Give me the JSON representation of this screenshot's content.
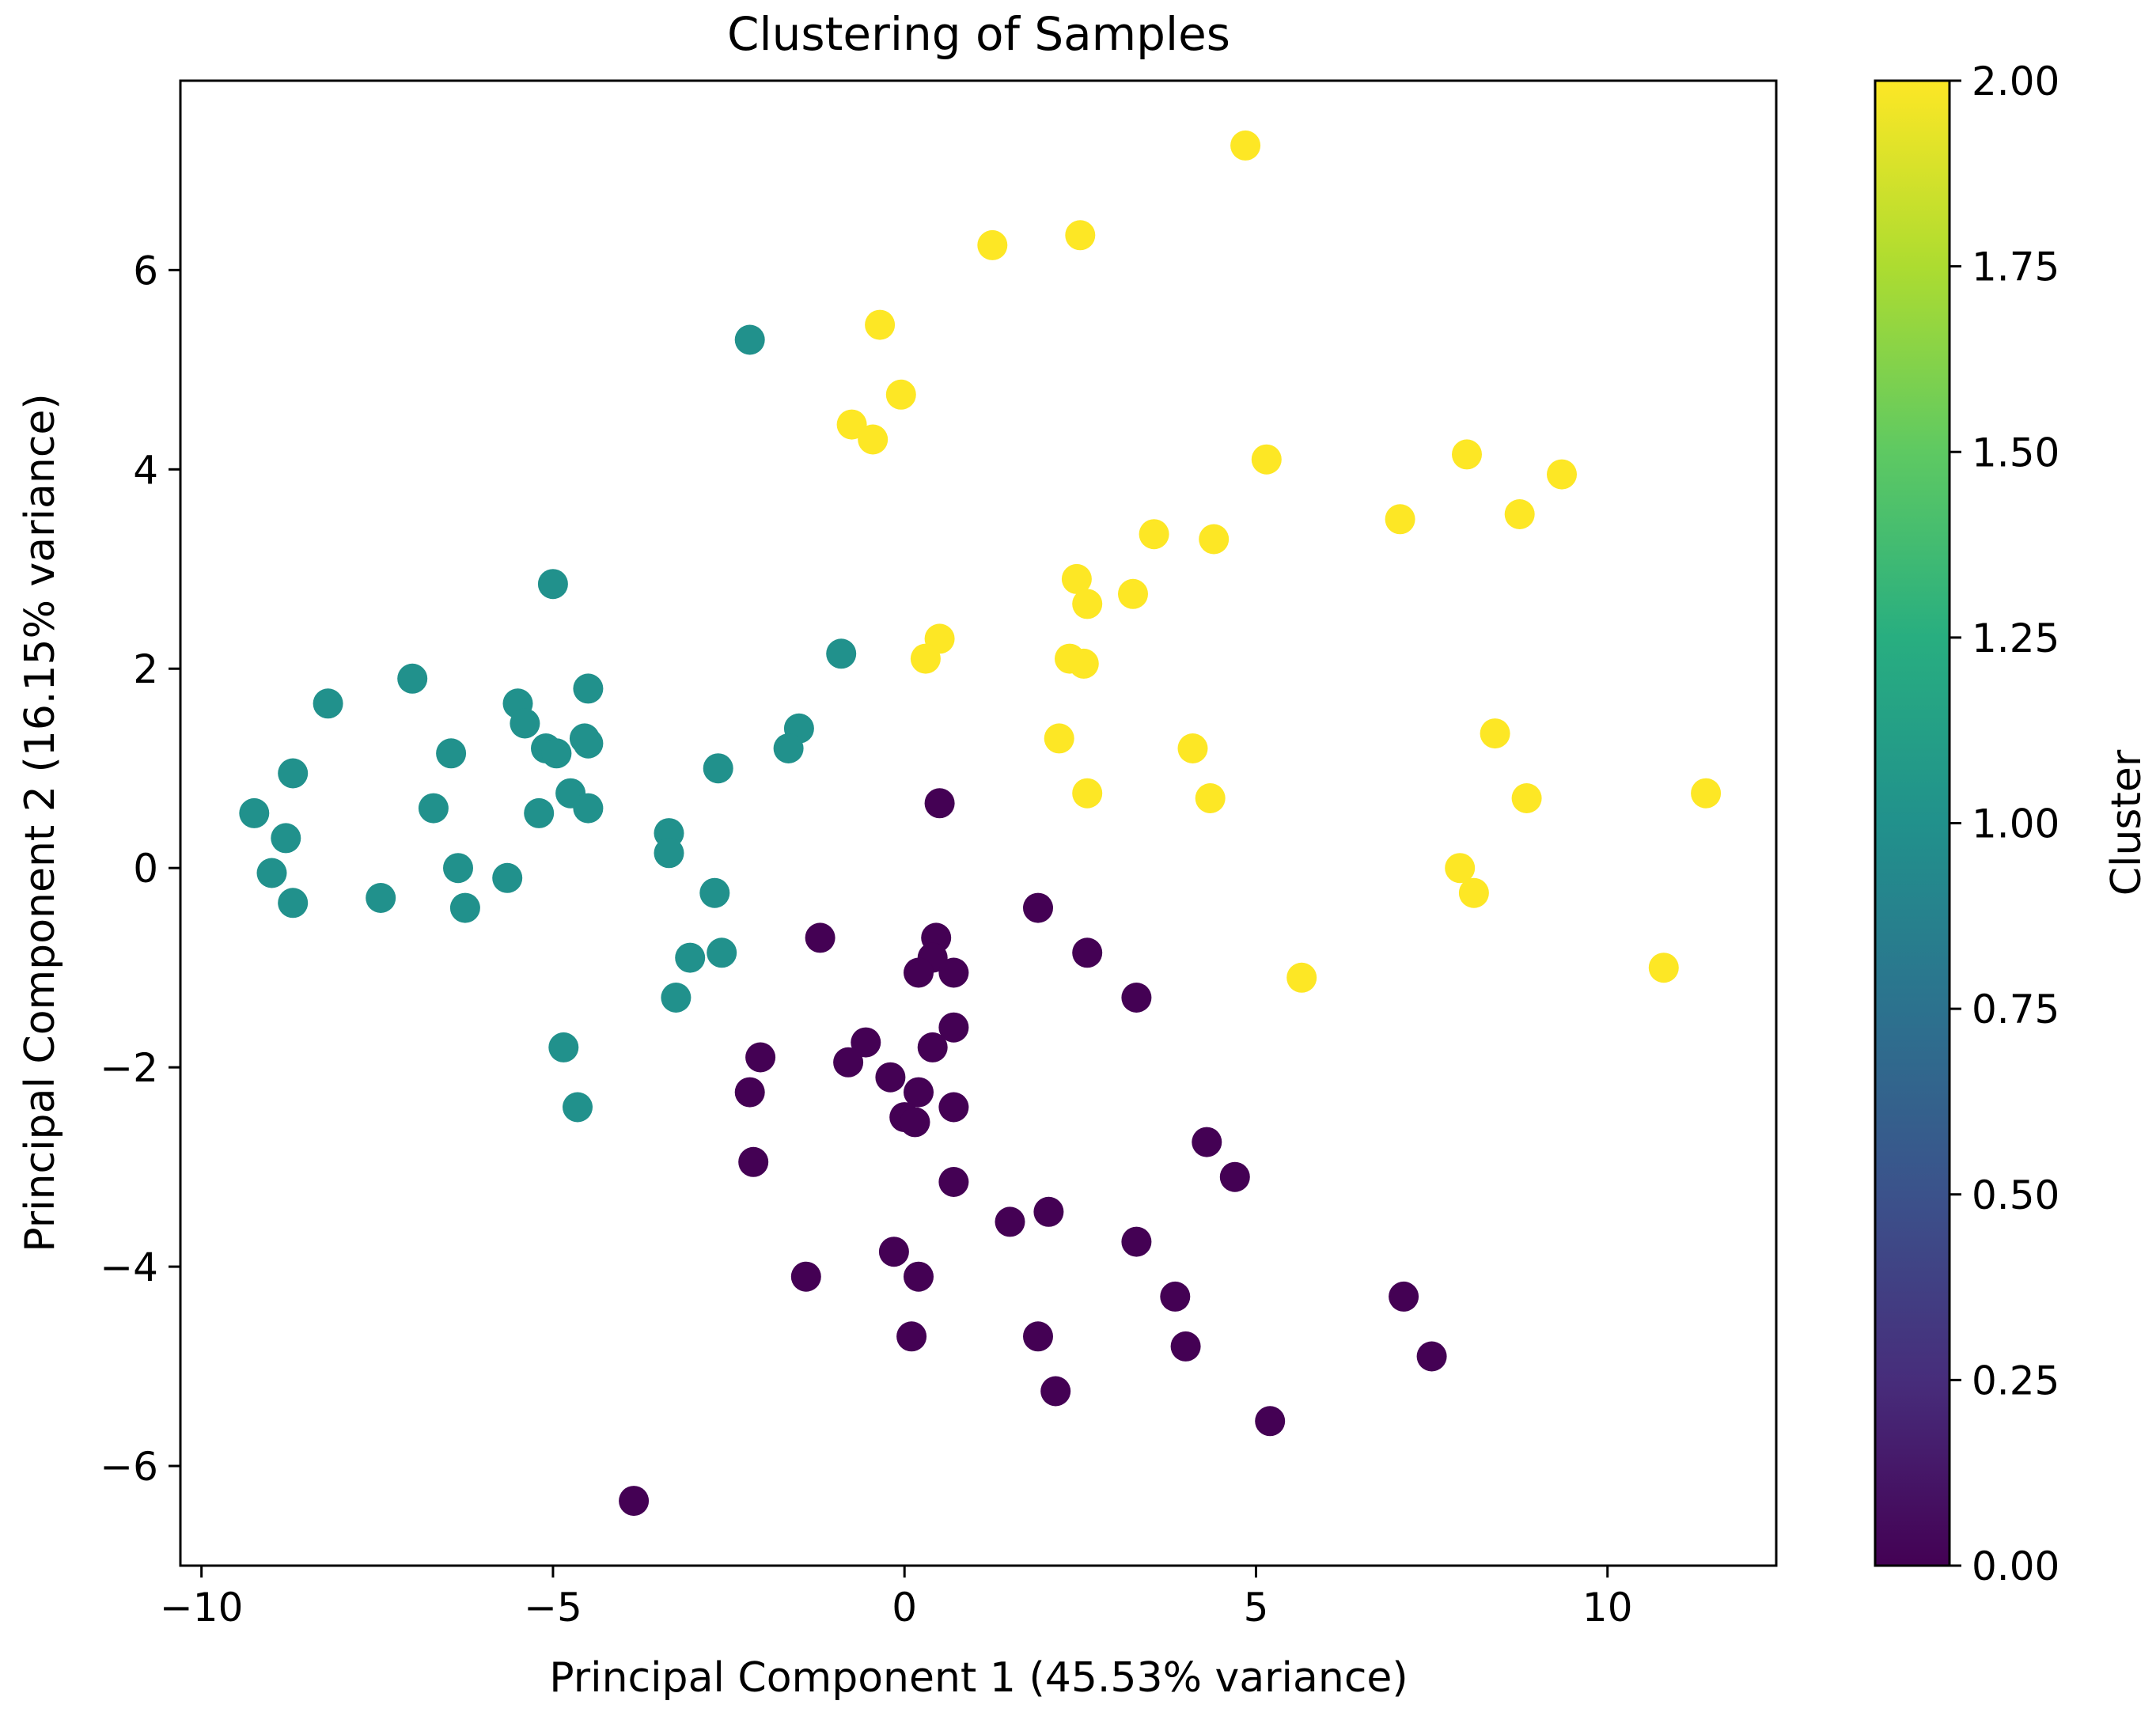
{
  "chart_data": {
    "type": "scatter",
    "title": "Clustering of Samples",
    "xlabel": "Principal Component 1 (45.53% variance)",
    "ylabel": "Principal Component 2 (16.15% variance)",
    "xlim": [
      -10.3,
      12.4
    ],
    "ylim": [
      -7.0,
      7.9
    ],
    "xticks": [
      -10,
      -5,
      0,
      5,
      10
    ],
    "xtick_labels": [
      "−10",
      "−5",
      "0",
      "5",
      "10"
    ],
    "yticks": [
      -6,
      -4,
      -2,
      0,
      2,
      4,
      6
    ],
    "ytick_labels": [
      "−6",
      "−4",
      "−2",
      "0",
      "2",
      "4",
      "6"
    ],
    "grid": false,
    "colorbar": {
      "label": "Cluster",
      "colormap": "viridis",
      "range": [
        0,
        2
      ],
      "ticks": [
        0,
        0.25,
        0.5,
        0.75,
        1.0,
        1.25,
        1.5,
        1.75,
        2.0
      ],
      "tick_labels": [
        "0.00",
        "0.25",
        "0.50",
        "0.75",
        "1.00",
        "1.25",
        "1.50",
        "1.75",
        "2.00"
      ]
    },
    "cluster_colors": [
      "#440154",
      "#21918c",
      "#fde725"
    ],
    "series": [
      {
        "cluster": 0,
        "points": [
          [
            0.5,
            0.65
          ],
          [
            1.9,
            -0.4
          ],
          [
            -1.2,
            -0.7
          ],
          [
            0.45,
            -0.7
          ],
          [
            0.4,
            -0.9
          ],
          [
            0.7,
            -1.05
          ],
          [
            0.2,
            -1.05
          ],
          [
            2.6,
            -0.85
          ],
          [
            3.3,
            -1.3
          ],
          [
            0.7,
            -1.6
          ],
          [
            0.4,
            -1.8
          ],
          [
            -0.55,
            -1.75
          ],
          [
            -0.8,
            -1.95
          ],
          [
            -2.05,
            -1.9
          ],
          [
            -0.2,
            -2.1
          ],
          [
            -2.2,
            -2.25
          ],
          [
            0.2,
            -2.25
          ],
          [
            0.7,
            -2.4
          ],
          [
            0.0,
            -2.5
          ],
          [
            0.15,
            -2.55
          ],
          [
            -2.15,
            -2.95
          ],
          [
            4.3,
            -2.75
          ],
          [
            4.7,
            -3.1
          ],
          [
            0.7,
            -3.15
          ],
          [
            1.5,
            -3.55
          ],
          [
            2.05,
            -3.45
          ],
          [
            3.3,
            -3.75
          ],
          [
            -0.15,
            -3.85
          ],
          [
            -1.4,
            -4.1
          ],
          [
            0.2,
            -4.1
          ],
          [
            3.85,
            -4.3
          ],
          [
            7.1,
            -4.3
          ],
          [
            0.1,
            -4.7
          ],
          [
            1.9,
            -4.7
          ],
          [
            4.0,
            -4.8
          ],
          [
            7.5,
            -4.9
          ],
          [
            2.15,
            -5.25
          ],
          [
            5.2,
            -5.55
          ],
          [
            -3.85,
            -6.35
          ]
        ]
      },
      {
        "cluster": 1,
        "points": [
          [
            -2.2,
            5.3
          ],
          [
            -5.0,
            2.85
          ],
          [
            -7.0,
            1.9
          ],
          [
            -0.9,
            2.15
          ],
          [
            -8.2,
            1.65
          ],
          [
            -4.5,
            1.8
          ],
          [
            -5.5,
            1.65
          ],
          [
            -5.4,
            1.45
          ],
          [
            -4.55,
            1.3
          ],
          [
            -4.5,
            1.25
          ],
          [
            -5.1,
            1.2
          ],
          [
            -4.95,
            1.15
          ],
          [
            -6.45,
            1.15
          ],
          [
            -1.5,
            1.4
          ],
          [
            -1.65,
            1.2
          ],
          [
            -8.7,
            0.95
          ],
          [
            -2.65,
            1.0
          ],
          [
            -4.75,
            0.75
          ],
          [
            -4.5,
            0.6
          ],
          [
            -5.2,
            0.55
          ],
          [
            -6.7,
            0.6
          ],
          [
            -9.25,
            0.55
          ],
          [
            -8.8,
            0.3
          ],
          [
            -3.35,
            0.35
          ],
          [
            -3.35,
            0.15
          ],
          [
            -9.0,
            -0.05
          ],
          [
            -6.35,
            0.0
          ],
          [
            -5.65,
            -0.1
          ],
          [
            -8.7,
            -0.35
          ],
          [
            -7.45,
            -0.3
          ],
          [
            -6.25,
            -0.4
          ],
          [
            -2.7,
            -0.25
          ],
          [
            -3.05,
            -0.9
          ],
          [
            -2.6,
            -0.85
          ],
          [
            -3.25,
            -1.3
          ],
          [
            -4.85,
            -1.8
          ],
          [
            -4.65,
            -2.4
          ]
        ]
      },
      {
        "cluster": 2,
        "points": [
          [
            4.85,
            7.25
          ],
          [
            2.5,
            6.35
          ],
          [
            1.25,
            6.25
          ],
          [
            -0.35,
            5.45
          ],
          [
            -0.05,
            4.75
          ],
          [
            -0.75,
            4.45
          ],
          [
            -0.45,
            4.3
          ],
          [
            5.15,
            4.1
          ],
          [
            8.0,
            4.15
          ],
          [
            9.35,
            3.95
          ],
          [
            8.75,
            3.55
          ],
          [
            7.05,
            3.5
          ],
          [
            3.55,
            3.35
          ],
          [
            4.4,
            3.3
          ],
          [
            2.45,
            2.9
          ],
          [
            3.25,
            2.75
          ],
          [
            2.6,
            2.65
          ],
          [
            0.5,
            2.3
          ],
          [
            0.3,
            2.1
          ],
          [
            2.35,
            2.1
          ],
          [
            2.55,
            2.05
          ],
          [
            8.4,
            1.35
          ],
          [
            2.2,
            1.3
          ],
          [
            4.1,
            1.2
          ],
          [
            11.4,
            0.75
          ],
          [
            2.6,
            0.75
          ],
          [
            4.35,
            0.7
          ],
          [
            8.85,
            0.7
          ],
          [
            7.9,
            0.0
          ],
          [
            8.1,
            -0.25
          ],
          [
            10.8,
            -1.0
          ],
          [
            5.65,
            -1.1
          ]
        ]
      }
    ]
  }
}
